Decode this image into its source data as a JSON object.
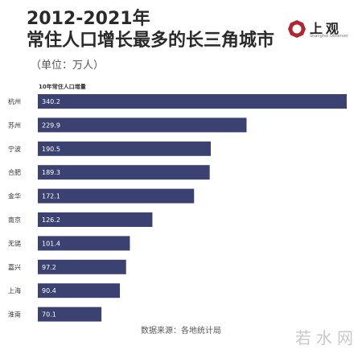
{
  "header": {
    "title_line1": "2012-2021年",
    "title_line2": "常住人口增长最多的长三角城市",
    "unit": "（单位：万人）"
  },
  "logo": {
    "text": "上观",
    "subtext": "Shanghai Observer"
  },
  "footer": {
    "source": "数据来源：各地统计局",
    "watermark": "若水网"
  },
  "colors": {
    "bar": "#3b4170",
    "bar_text": "#ffffff",
    "logo_mark": "#b0282f"
  },
  "chart_data": {
    "type": "bar",
    "orientation": "horizontal",
    "series": [
      {
        "name": "10年常住人口增量",
        "values": [
          340.2,
          229.9,
          190.5,
          189.3,
          172.1,
          126.2,
          101.4,
          97.2,
          90.4,
          70.1
        ]
      }
    ],
    "categories": [
      "杭州",
      "苏州",
      "宁波",
      "合肥",
      "金华",
      "南京",
      "无锡",
      "嘉兴",
      "上海",
      "淮南"
    ],
    "data_labels": [
      "340.2",
      "229.9",
      "190.5",
      "189.3",
      "172.1",
      "126.2",
      "101.4",
      "97.2",
      "90.4",
      "70.1"
    ],
    "xlim": [
      0,
      340.2
    ],
    "grid": false,
    "legend": "none"
  }
}
